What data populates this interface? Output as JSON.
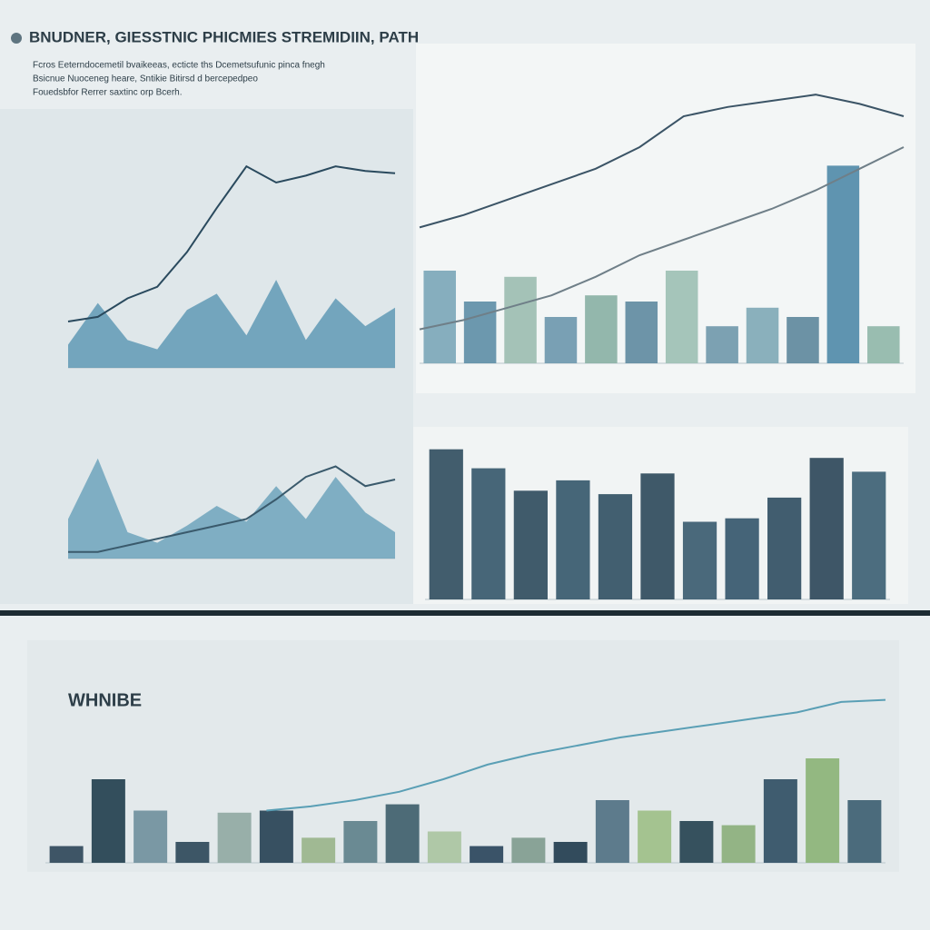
{
  "header": {
    "title": "BNUDNER, GIESSTNIC PHICMIES STREMIDIIN, PATH",
    "subtitle": [
      "Fcros Eeterndocemetil bvaikeeas, ecticte ths Dcemetsufunic pinca fnegh",
      "Bsicnue Nuoceneg heare, Sntikie Bitirsd d bercepedpeo",
      "Fouedsbfor Rerrer saxtinc orp Bcerh."
    ]
  },
  "chart_data": [
    {
      "type": "area",
      "ylim": [
        0,
        100
      ],
      "series": [
        {
          "color": "#4f8fae",
          "kind": "area",
          "values": [
            10,
            28,
            12,
            8,
            25,
            32,
            14,
            38,
            12,
            30,
            18,
            26
          ]
        },
        {
          "color": "#2a4a5e",
          "kind": "line",
          "values": [
            20,
            22,
            30,
            35,
            50,
            69,
            87,
            80,
            83,
            87,
            85,
            84
          ]
        }
      ]
    },
    {
      "type": "bar",
      "ylim": [
        0,
        100
      ],
      "colors": [
        "#7aa6b8",
        "#5d8ea6",
        "#9bbcb0",
        "#6b97ad",
        "#88b0a4",
        "#5e8aa0",
        "#9cc0b4",
        "#6f98ab",
        "#7ea9b6",
        "#5d879c",
        "#4f8aa8",
        "#8fb7a8"
      ],
      "values": [
        30,
        20,
        28,
        15,
        22,
        20,
        30,
        12,
        18,
        15,
        64,
        12
      ],
      "series": [
        {
          "color": "#3b5466",
          "kind": "line",
          "values": [
            44,
            48,
            53,
            58,
            63,
            70,
            80,
            83,
            85,
            87,
            84,
            80
          ]
        },
        {
          "color": "#6f7f88",
          "kind": "line",
          "values": [
            11,
            14,
            18,
            22,
            28,
            35,
            40,
            45,
            50,
            56,
            63,
            70
          ]
        }
      ]
    },
    {
      "type": "area",
      "ylim": [
        0,
        100
      ],
      "series": [
        {
          "color": "#5f9bb5",
          "kind": "area",
          "values": [
            30,
            76,
            20,
            12,
            25,
            40,
            28,
            55,
            30,
            62,
            35,
            20
          ]
        },
        {
          "color": "#3a5a6c",
          "kind": "line",
          "values": [
            5,
            5,
            10,
            15,
            20,
            25,
            30,
            45,
            62,
            70,
            55,
            60
          ]
        }
      ]
    },
    {
      "type": "bar",
      "ylim": [
        0,
        100
      ],
      "colors": [
        "#2f4c5e",
        "#34566a",
        "#2c4a5c",
        "#33566a",
        "#2f4f62",
        "#2b485a",
        "#375a6e",
        "#32546a",
        "#2e4c60",
        "#2a4558",
        "#3a5e72"
      ],
      "values": [
        87,
        76,
        63,
        69,
        61,
        73,
        45,
        47,
        59,
        82,
        74
      ]
    },
    {
      "type": "bar",
      "ylim": [
        0,
        100
      ],
      "label": "WHNIBE",
      "colors": [
        "#2b4558",
        "#1f3d4c",
        "#6e8f9c",
        "#2a4658",
        "#8fa9a2",
        "#233f52",
        "#98b48a",
        "#5c7f8a",
        "#3c5d6a",
        "#a8c4a0",
        "#27435a",
        "#7e9b8e",
        "#1e3a4c",
        "#4e6f82",
        "#9cbf86",
        "#22404f",
        "#8aae7a",
        "#2c4d62",
        "#89b276",
        "#3a5d70"
      ],
      "values": [
        8,
        40,
        25,
        10,
        24,
        25,
        12,
        20,
        28,
        15,
        8,
        12,
        10,
        30,
        25,
        20,
        18,
        40,
        50,
        30
      ],
      "series": [
        {
          "color": "#5a9fb5",
          "kind": "line",
          "values": [
            null,
            null,
            null,
            null,
            null,
            25,
            27,
            30,
            34,
            40,
            47,
            52,
            56,
            60,
            63,
            66,
            69,
            72,
            77,
            78
          ]
        }
      ]
    }
  ]
}
